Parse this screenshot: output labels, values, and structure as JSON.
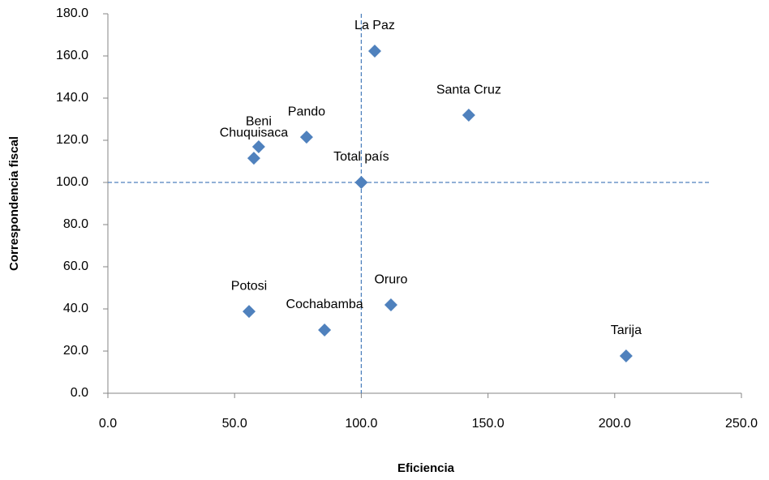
{
  "chart_data": {
    "type": "scatter",
    "xlabel": "Eficiencia",
    "ylabel": "Correspondencia fiscal",
    "point_labels": [
      "La Paz",
      "Santa Cruz",
      "Pando",
      "Beni",
      "Chuquisaca",
      "Total país",
      "Oruro",
      "Potosi",
      "Cochabamba",
      "Tarija"
    ],
    "x": [
      105.3,
      142.4,
      78.4,
      59.5,
      57.6,
      100,
      111.7,
      55.7,
      85.5,
      204.5
    ],
    "values": [
      162.3,
      131.9,
      121.5,
      116.9,
      111.5,
      100,
      41.9,
      38.8,
      30,
      17.7
    ],
    "color": "#4f81bd",
    "reference_lines": {
      "x": 100,
      "y": 100
    },
    "xlim": [
      0,
      250
    ],
    "xticks": [
      {
        "value": 0,
        "label": "0.0"
      },
      {
        "value": 50,
        "label": "50.0"
      },
      {
        "value": 100,
        "label": "100.0"
      },
      {
        "value": 150,
        "label": "150.0"
      },
      {
        "value": 200,
        "label": "200.0"
      },
      {
        "value": 250,
        "label": "250.0"
      }
    ],
    "ylim": [
      0,
      180
    ],
    "yticks": [
      {
        "value": 0,
        "label": "0.0"
      },
      {
        "value": 20,
        "label": "20.0"
      },
      {
        "value": 40,
        "label": "40.0"
      },
      {
        "value": 60,
        "label": "60.0"
      },
      {
        "value": 80,
        "label": "80.0"
      },
      {
        "value": 100,
        "label": "100.0"
      },
      {
        "value": 120,
        "label": "120.0"
      },
      {
        "value": 140,
        "label": "140.0"
      },
      {
        "value": 160,
        "label": "160.0"
      },
      {
        "value": 180,
        "label": "180.0"
      }
    ]
  }
}
